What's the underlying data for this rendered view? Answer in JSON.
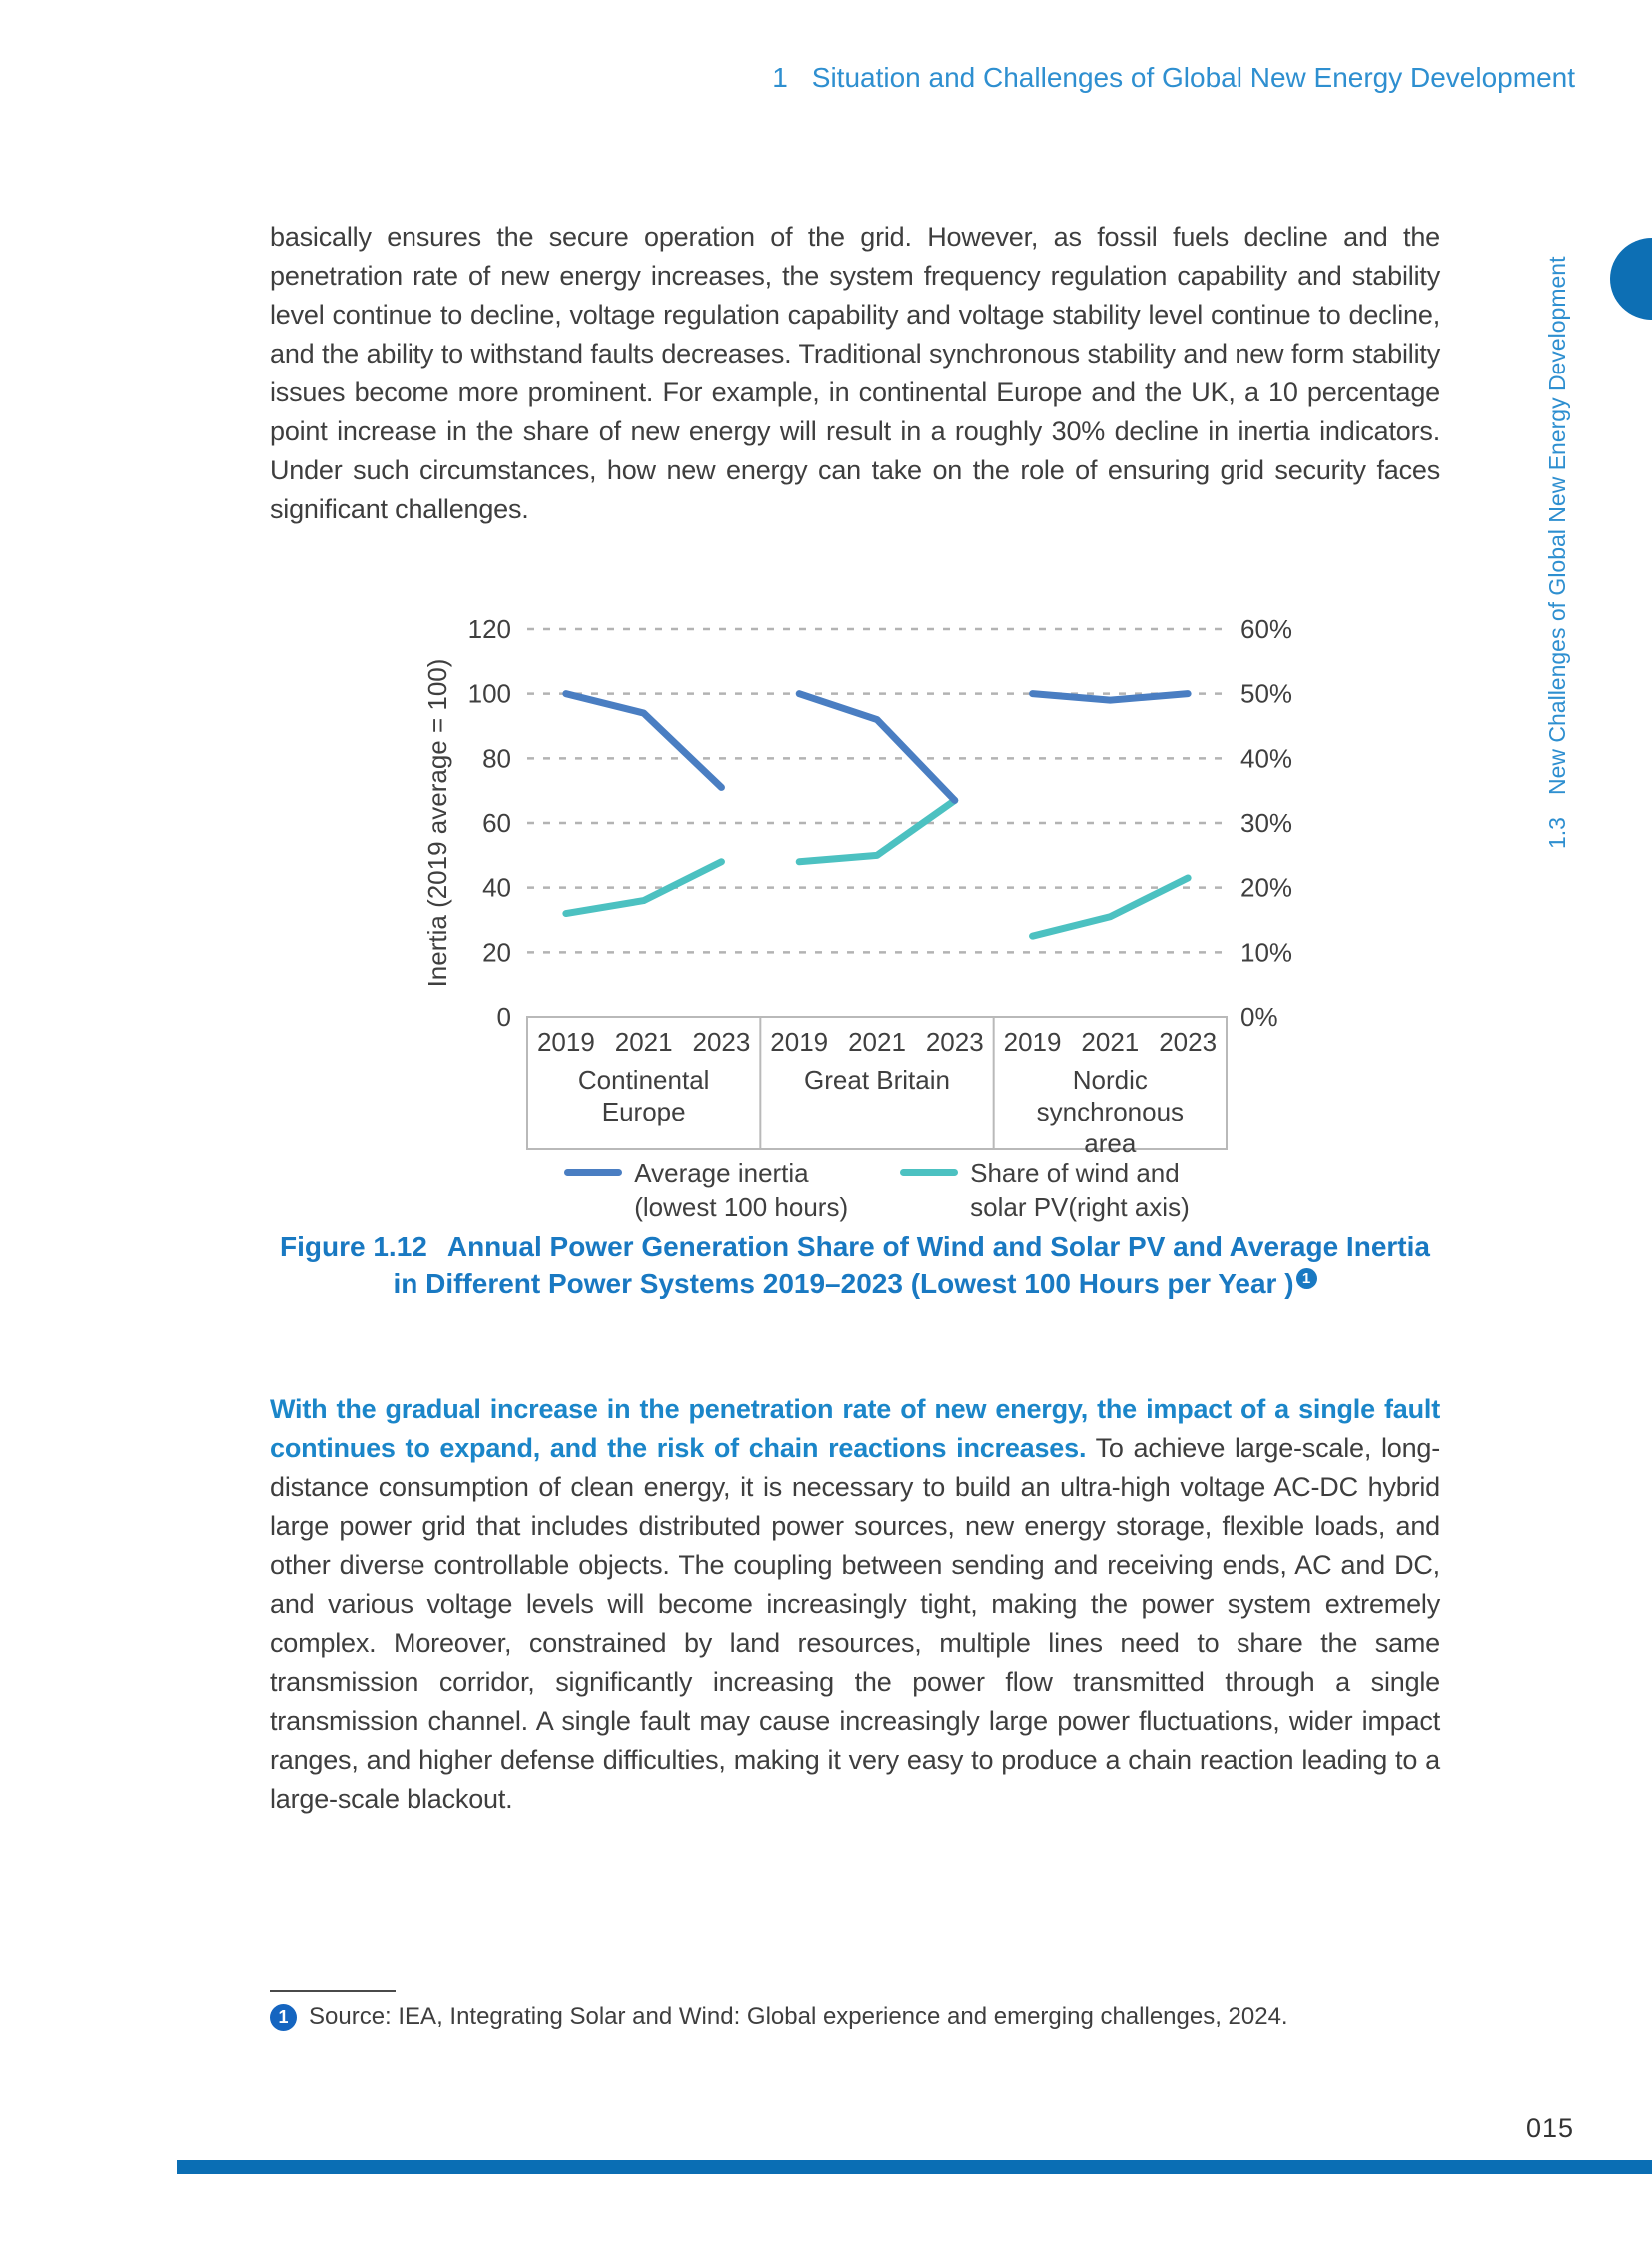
{
  "page": {
    "header_num": "1",
    "header_text": "Situation and Challenges of Global New Energy Development",
    "sidebar_num": "1.3",
    "sidebar_text": "New Challenges of Global New Energy Development",
    "page_number": "015"
  },
  "paragraph1": "basically ensures the secure operation of the grid. However, as fossil fuels decline and the penetration rate of new energy increases, the system frequency regulation capability and stability level continue to decline, voltage regulation capability and voltage stability level continue to decline, and the ability to withstand faults decreases. Traditional synchronous stability and new form stability issues become more prominent. For example, in continental Europe and the UK, a 10 percentage point increase in the share of new energy will result in a roughly 30% decline in inertia indicators. Under such circumstances, how new energy can take on the role of ensuring grid security faces significant challenges.",
  "paragraph2_lead": "With the gradual increase in the penetration rate of new energy, the impact of a single fault continues to expand, and the risk of chain reactions increases.",
  "paragraph2_rest": " To achieve large-scale, long-distance consumption of clean energy, it is necessary to build an ultra-high voltage AC-DC hybrid large power grid that includes distributed power sources, new energy storage, flexible loads, and other diverse controllable objects. The coupling between sending and receiving ends, AC and DC, and various voltage levels will become increasingly tight, making the power system extremely complex. Moreover, constrained by land resources, multiple lines need to share the same transmission corridor, significantly increasing the power flow transmitted through a single transmission channel. A single fault may cause increasingly large power fluctuations, wider impact ranges, and higher defense difficulties, making it very easy to produce a chain reaction leading to a large-scale blackout.",
  "figure": {
    "caption_label": "Figure 1.12",
    "caption_line1": "Annual Power Generation Share of Wind and Solar PV and Average Inertia",
    "caption_line2": "in Different Power Systems 2019–2023 (Lowest 100 Hours per Year )",
    "caption_footnote_marker": "1"
  },
  "footnote": {
    "marker": "1",
    "text": "Source: IEA, Integrating Solar and Wind: Global experience and emerging challenges, 2024."
  },
  "chart_data": {
    "type": "line",
    "title": "",
    "ylabel_left": "Inertia (2019 average = 100)",
    "left_axis": {
      "min": 0,
      "max": 120,
      "ticks": [
        0,
        20,
        40,
        60,
        80,
        100,
        120
      ]
    },
    "right_axis": {
      "min_pct": 0,
      "max_pct": 60,
      "tick_labels": [
        "0%",
        "10%",
        "20%",
        "30%",
        "40%",
        "50%",
        "60%"
      ],
      "tick_values_pct": [
        0,
        10,
        20,
        30,
        40,
        50,
        60
      ]
    },
    "x_tick_labels": [
      "2019",
      "2021",
      "2023"
    ],
    "grid": "dashed-horizontal",
    "legend_position": "bottom",
    "panels": [
      {
        "name": "Continental Europe",
        "name_lines": [
          "Continental",
          "Europe"
        ],
        "years": [
          2019,
          2021,
          2023
        ],
        "average_inertia": [
          100,
          94,
          71
        ],
        "wind_solar_share_pct": [
          16,
          18,
          24
        ]
      },
      {
        "name": "Great Britain",
        "name_lines": [
          "Great Britain"
        ],
        "years": [
          2019,
          2021,
          2023
        ],
        "average_inertia": [
          100,
          92,
          67
        ],
        "wind_solar_share_pct": [
          24,
          25,
          33.5
        ]
      },
      {
        "name": "Nordic synchronous area",
        "name_lines": [
          "Nordic",
          "synchronous",
          "area"
        ],
        "years": [
          2019,
          2021,
          2023
        ],
        "average_inertia": [
          100,
          98,
          100
        ],
        "wind_solar_share_pct": [
          12.5,
          15.5,
          21.5
        ]
      }
    ],
    "legend": [
      {
        "label_lines": [
          "Average inertia",
          "(lowest 100 hours)"
        ],
        "color": "#4a7ec2"
      },
      {
        "label_lines": [
          "Share of wind and",
          "solar PV(right axis)"
        ],
        "color": "#4cc1c1"
      }
    ],
    "colors": {
      "inertia_line": "#4a7ec2",
      "share_line": "#4cc1c1",
      "gridline": "#b3b3b3",
      "axis_box_border": "#b9b9b9",
      "tick_text": "#3f3f3f"
    }
  }
}
